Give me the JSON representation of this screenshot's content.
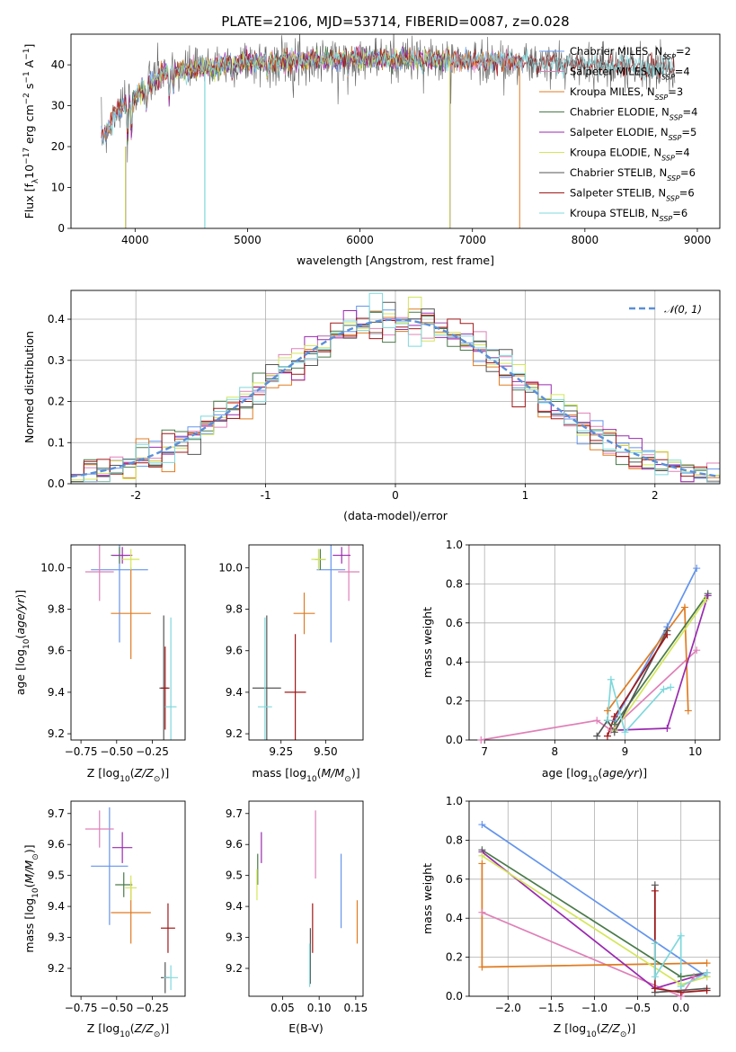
{
  "figure_title": "PLATE=2106, MJD=53714, FIBERID=0087, z=0.028",
  "colors": {
    "Chabrier MILES": "#6495ed",
    "Salpeter MILES": "#e080b8",
    "Kroupa MILES": "#e07b20",
    "Chabrier ELODIE": "#4a7a4a",
    "Salpeter ELODIE": "#9a2ab0",
    "Kroupa ELODIE": "#d4e65a",
    "Chabrier STELIB": "#555555",
    "Salpeter STELIB": "#a01818",
    "Kroupa STELIB": "#7fd8dc",
    "gauss": "#5b8fd8"
  },
  "chart_data": [
    {
      "type": "line",
      "title": "PLATE=2106, MJD=53714, FIBERID=0087, z=0.028",
      "xlabel": "wavelength [Angstrom, rest frame]",
      "ylabel_parts": [
        "Flux [f",
        "λ",
        "10",
        "−17",
        " erg cm",
        "−2",
        " s",
        "−1",
        " A",
        "−1",
        "]"
      ],
      "xlim": [
        3430,
        9200
      ],
      "ylim": [
        0,
        47.5
      ],
      "xticks": [
        4000,
        5000,
        6000,
        7000,
        8000,
        9000
      ],
      "yticks": [
        0,
        10,
        20,
        30,
        40
      ],
      "legend_position": "top-right",
      "series": [
        {
          "name": "Chabrier MILES",
          "nssp": "2",
          "range": [
            3700,
            7450
          ]
        },
        {
          "name": "Salpeter MILES",
          "nssp": "4",
          "range": [
            3700,
            7450
          ]
        },
        {
          "name": "Kroupa MILES",
          "nssp": "3",
          "range": [
            3700,
            7420
          ]
        },
        {
          "name": "Chabrier ELODIE",
          "nssp": "4",
          "range": [
            3910,
            6800
          ]
        },
        {
          "name": "Salpeter ELODIE",
          "nssp": "5",
          "range": [
            3910,
            6800
          ]
        },
        {
          "name": "Kroupa ELODIE",
          "nssp": "4",
          "range": [
            3910,
            6800
          ]
        },
        {
          "name": "Chabrier STELIB",
          "nssp": "6",
          "range": [
            3700,
            8800
          ]
        },
        {
          "name": "Salpeter STELIB",
          "nssp": "6",
          "range": [
            3700,
            8800
          ]
        },
        {
          "name": "Kroupa STELIB",
          "nssp": "6",
          "range": [
            3700,
            8800
          ]
        }
      ]
    },
    {
      "type": "bar",
      "xlabel": "(data-model)/error",
      "ylabel": "Normed distribution",
      "xlim": [
        -2.5,
        2.5
      ],
      "ylim": [
        0,
        0.47
      ],
      "xticks": [
        -2,
        -1,
        0,
        1,
        2
      ],
      "yticks": [
        0.0,
        0.1,
        0.2,
        0.3,
        0.4
      ],
      "legend": "𝒩(0, 1)",
      "legend_position": "top-right",
      "bin_width": 0.1,
      "grid": true
    },
    {
      "type": "scatter",
      "xlabel": "Z [log10(Z/Z⊙)]",
      "ylabel": "age [log10(age/yr)]",
      "xlim": [
        -0.82,
        -0.02
      ],
      "ylim": [
        9.17,
        10.11
      ],
      "xticks": [
        -0.75,
        -0.5,
        -0.25
      ],
      "xtick_labels": [
        "−0.75",
        "−0.50",
        "−0.25"
      ],
      "yticks": [
        9.2,
        9.4,
        9.6,
        9.8,
        10.0
      ],
      "points": [
        {
          "series": "Chabrier MILES",
          "x": -0.48,
          "y": 9.99,
          "xerr": 0.2,
          "yerr": 0.35
        },
        {
          "series": "Salpeter MILES",
          "x": -0.62,
          "y": 9.98,
          "xerr": 0.1,
          "yerr": 0.14
        },
        {
          "series": "Kroupa MILES",
          "x": -0.4,
          "y": 9.78,
          "xerr": 0.14,
          "yerr": 0.22
        },
        {
          "series": "Chabrier ELODIE",
          "x": -0.48,
          "y": 10.06,
          "xerr": 0.06,
          "yerr": 0.04
        },
        {
          "series": "Salpeter ELODIE",
          "x": -0.46,
          "y": 10.06,
          "xerr": 0.07,
          "yerr": 0.04
        },
        {
          "series": "Kroupa ELODIE",
          "x": -0.4,
          "y": 10.04,
          "xerr": 0.06,
          "yerr": 0.05
        },
        {
          "series": "Chabrier STELIB",
          "x": -0.17,
          "y": 9.42,
          "xerr": 0.03,
          "yerr": 0.35
        },
        {
          "series": "Salpeter STELIB",
          "x": -0.16,
          "y": 9.42,
          "xerr": 0.03,
          "yerr": 0.2
        },
        {
          "series": "Kroupa STELIB",
          "x": -0.12,
          "y": 9.33,
          "xerr": 0.04,
          "yerr": 0.43
        }
      ]
    },
    {
      "type": "scatter",
      "xlabel": "mass [log10(M/M⊙)]",
      "xlim": [
        9.07,
        9.71
      ],
      "ylim": [
        9.17,
        10.11
      ],
      "xticks": [
        9.25,
        9.5
      ],
      "xtick_labels": [
        "9.25",
        "9.50"
      ],
      "yticks": [
        9.2,
        9.4,
        9.6,
        9.8,
        10.0
      ],
      "points": [
        {
          "series": "Chabrier MILES",
          "x": 9.53,
          "y": 9.99,
          "xerr": 0.08,
          "yerr": 0.35
        },
        {
          "series": "Salpeter MILES",
          "x": 9.63,
          "y": 9.98,
          "xerr": 0.06,
          "yerr": 0.14
        },
        {
          "series": "Kroupa MILES",
          "x": 9.38,
          "y": 9.78,
          "xerr": 0.06,
          "yerr": 0.1
        },
        {
          "series": "Chabrier ELODIE",
          "x": 9.47,
          "y": 10.04,
          "xerr": 0.03,
          "yerr": 0.05
        },
        {
          "series": "Salpeter ELODIE",
          "x": 9.59,
          "y": 10.06,
          "xerr": 0.05,
          "yerr": 0.04
        },
        {
          "series": "Kroupa ELODIE",
          "x": 9.46,
          "y": 10.04,
          "xerr": 0.04,
          "yerr": 0.05
        },
        {
          "series": "Chabrier STELIB",
          "x": 9.17,
          "y": 9.42,
          "xerr": 0.08,
          "yerr": 0.35
        },
        {
          "series": "Salpeter STELIB",
          "x": 9.33,
          "y": 9.4,
          "xerr": 0.06,
          "yerr": 0.28
        },
        {
          "series": "Kroupa STELIB",
          "x": 9.16,
          "y": 9.33,
          "xerr": 0.04,
          "yerr": 0.43
        }
      ]
    },
    {
      "type": "line",
      "xlabel": "age [log10(age/yr)]",
      "ylabel": "mass weight",
      "xlim": [
        6.78,
        10.35
      ],
      "ylim": [
        0,
        1.0
      ],
      "xticks": [
        7,
        8,
        9,
        10
      ],
      "yticks": [
        0.0,
        0.2,
        0.4,
        0.6,
        0.8,
        1.0
      ],
      "grid": true,
      "series": [
        {
          "name": "Chabrier MILES",
          "points": [
            [
              8.85,
              0.1
            ],
            [
              9.6,
              0.58
            ],
            [
              10.02,
              0.88
            ]
          ]
        },
        {
          "name": "Salpeter MILES",
          "points": [
            [
              6.95,
              0.0
            ],
            [
              8.6,
              0.1
            ],
            [
              8.8,
              0.05
            ],
            [
              10.02,
              0.46
            ]
          ]
        },
        {
          "name": "Kroupa MILES",
          "points": [
            [
              8.75,
              0.15
            ],
            [
              9.85,
              0.68
            ],
            [
              9.9,
              0.15
            ]
          ]
        },
        {
          "name": "Chabrier ELODIE",
          "points": [
            [
              8.85,
              0.08
            ],
            [
              10.18,
              0.75
            ]
          ]
        },
        {
          "name": "Salpeter ELODIE",
          "points": [
            [
              8.85,
              0.05
            ],
            [
              9.6,
              0.06
            ],
            [
              10.18,
              0.74
            ]
          ]
        },
        {
          "name": "Kroupa ELODIE",
          "points": [
            [
              8.85,
              0.05
            ],
            [
              10.15,
              0.72
            ]
          ]
        },
        {
          "name": "Chabrier STELIB",
          "points": [
            [
              8.6,
              0.02
            ],
            [
              8.75,
              0.1
            ],
            [
              8.85,
              0.04
            ],
            [
              9.6,
              0.56
            ]
          ]
        },
        {
          "name": "Salpeter STELIB",
          "points": [
            [
              8.75,
              0.02
            ],
            [
              8.85,
              0.12
            ],
            [
              9.6,
              0.54
            ]
          ]
        },
        {
          "name": "Kroupa STELIB",
          "points": [
            [
              8.75,
              0.1
            ],
            [
              8.8,
              0.31
            ],
            [
              9.0,
              0.04
            ],
            [
              9.55,
              0.26
            ],
            [
              9.65,
              0.27
            ]
          ]
        }
      ]
    },
    {
      "type": "scatter",
      "xlabel": "Z [log10(Z/Z⊙)]",
      "ylabel": "mass [log10(M/M⊙)]",
      "xlim": [
        -0.82,
        -0.02
      ],
      "ylim": [
        9.11,
        9.74
      ],
      "xticks": [
        -0.75,
        -0.5,
        -0.25
      ],
      "xtick_labels": [
        "−0.75",
        "−0.50",
        "−0.25"
      ],
      "yticks": [
        9.2,
        9.3,
        9.4,
        9.5,
        9.6,
        9.7
      ],
      "points": [
        {
          "series": "Chabrier MILES",
          "x": -0.55,
          "y": 9.53,
          "xerr": 0.13,
          "yerr": 0.19
        },
        {
          "series": "Salpeter MILES",
          "x": -0.62,
          "y": 9.65,
          "xerr": 0.1,
          "yerr": 0.06
        },
        {
          "series": "Kroupa MILES",
          "x": -0.4,
          "y": 9.38,
          "xerr": 0.14,
          "yerr": 0.1
        },
        {
          "series": "Chabrier ELODIE",
          "x": -0.45,
          "y": 9.47,
          "xerr": 0.06,
          "yerr": 0.04
        },
        {
          "series": "Salpeter ELODIE",
          "x": -0.46,
          "y": 9.59,
          "xerr": 0.07,
          "yerr": 0.05
        },
        {
          "series": "Kroupa ELODIE",
          "x": -0.4,
          "y": 9.46,
          "xerr": 0.04,
          "yerr": 0.04
        },
        {
          "series": "Chabrier STELIB",
          "x": -0.16,
          "y": 9.17,
          "xerr": 0.03,
          "yerr": 0.05
        },
        {
          "series": "Salpeter STELIB",
          "x": -0.14,
          "y": 9.33,
          "xerr": 0.05,
          "yerr": 0.08
        },
        {
          "series": "Kroupa STELIB",
          "x": -0.12,
          "y": 9.17,
          "xerr": 0.05,
          "yerr": 0.04
        }
      ]
    },
    {
      "type": "scatter",
      "xlabel": "E(B-V)",
      "xlim": [
        0.004,
        0.16
      ],
      "ylim": [
        9.11,
        9.74
      ],
      "xticks": [
        0.05,
        0.1,
        0.15
      ],
      "xtick_labels": [
        "0.05",
        "0.10",
        "0.15"
      ],
      "yticks": [
        9.2,
        9.3,
        9.4,
        9.5,
        9.6,
        9.7
      ],
      "points": [
        {
          "series": "Chabrier MILES",
          "x": 0.13,
          "y": 9.45,
          "yerr": 0.12
        },
        {
          "series": "Salpeter MILES",
          "x": 0.095,
          "y": 9.6,
          "yerr": 0.11
        },
        {
          "series": "Kroupa MILES",
          "x": 0.152,
          "y": 9.35,
          "yerr": 0.07
        },
        {
          "series": "Chabrier ELODIE",
          "x": 0.016,
          "y": 9.52,
          "yerr": 0.05
        },
        {
          "series": "Salpeter ELODIE",
          "x": 0.021,
          "y": 9.59,
          "yerr": 0.05
        },
        {
          "series": "Kroupa ELODIE",
          "x": 0.015,
          "y": 9.47,
          "yerr": 0.05
        },
        {
          "series": "Chabrier STELIB",
          "x": 0.088,
          "y": 9.24,
          "yerr": 0.09
        },
        {
          "series": "Salpeter STELIB",
          "x": 0.091,
          "y": 9.33,
          "yerr": 0.08
        },
        {
          "series": "Kroupa STELIB",
          "x": 0.087,
          "y": 9.21,
          "yerr": 0.07
        }
      ]
    },
    {
      "type": "line",
      "xlabel": "Z [log10(Z/Z⊙)]",
      "ylabel": "mass weight",
      "xlim": [
        -2.45,
        0.45
      ],
      "ylim": [
        0,
        1.0
      ],
      "xticks": [
        -2.0,
        -1.5,
        -1.0,
        -0.5,
        0.0
      ],
      "xtick_labels": [
        "−2.0",
        "−1.5",
        "−1.0",
        "−0.5",
        "0.0"
      ],
      "yticks": [
        0.0,
        0.2,
        0.4,
        0.6,
        0.8,
        1.0
      ],
      "grid": true,
      "series": [
        {
          "name": "Chabrier MILES",
          "points": [
            [
              -2.3,
              0.88
            ],
            [
              0.3,
              0.1
            ]
          ]
        },
        {
          "name": "Salpeter MILES",
          "points": [
            [
              -2.3,
              0.43
            ],
            [
              0.0,
              0.0
            ],
            [
              0.15,
              0.1
            ]
          ]
        },
        {
          "name": "Kroupa MILES",
          "points": [
            [
              -2.3,
              0.68
            ],
            [
              -2.3,
              0.15
            ],
            [
              0.3,
              0.17
            ]
          ]
        },
        {
          "name": "Chabrier ELODIE",
          "points": [
            [
              -2.3,
              0.75
            ],
            [
              0.0,
              0.1
            ],
            [
              0.3,
              0.12
            ]
          ]
        },
        {
          "name": "Salpeter ELODIE",
          "points": [
            [
              -2.3,
              0.74
            ],
            [
              -0.3,
              0.04
            ],
            [
              0.3,
              0.12
            ]
          ]
        },
        {
          "name": "Kroupa ELODIE",
          "points": [
            [
              -2.3,
              0.72
            ],
            [
              0.0,
              0.06
            ],
            [
              0.3,
              0.1
            ]
          ]
        },
        {
          "name": "Chabrier STELIB",
          "points": [
            [
              -0.3,
              0.57
            ],
            [
              -0.3,
              0.02
            ],
            [
              0.0,
              0.03
            ],
            [
              0.3,
              0.04
            ]
          ]
        },
        {
          "name": "Salpeter STELIB",
          "points": [
            [
              -0.3,
              0.54
            ],
            [
              -0.3,
              0.04
            ],
            [
              0.0,
              0.02
            ],
            [
              0.3,
              0.03
            ]
          ]
        },
        {
          "name": "Kroupa STELIB",
          "points": [
            [
              -0.3,
              0.27
            ],
            [
              -0.3,
              0.1
            ],
            [
              0.0,
              0.31
            ],
            [
              0.0,
              0.05
            ],
            [
              0.3,
              0.12
            ]
          ]
        }
      ]
    }
  ]
}
